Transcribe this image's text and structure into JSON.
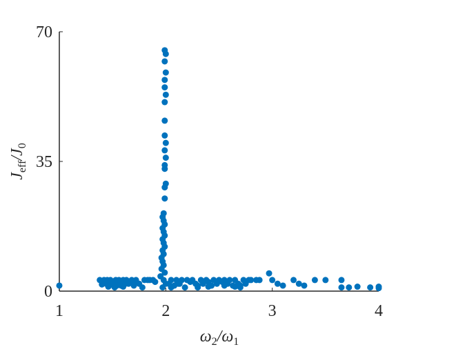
{
  "chart_data": {
    "type": "scatter",
    "xlabel": [
      "ω",
      "2",
      "/ω",
      "1"
    ],
    "ylabel": [
      "J",
      "eff",
      "/J",
      "0"
    ],
    "xlim": [
      1,
      4
    ],
    "xticks": [
      1,
      2,
      3,
      4
    ],
    "ylim": [
      0,
      70
    ],
    "yticks": [
      0,
      35,
      70
    ],
    "color": "#0072bd",
    "x": [
      1.0,
      1.38,
      1.4,
      1.42,
      1.44,
      1.45,
      1.47,
      1.48,
      1.5,
      1.52,
      1.53,
      1.55,
      1.56,
      1.58,
      1.6,
      1.62,
      1.63,
      1.65,
      1.68,
      1.7,
      1.72,
      1.75,
      1.78,
      1.8,
      1.83,
      1.85,
      1.4,
      1.46,
      1.5,
      1.54,
      1.57,
      1.6,
      1.65,
      1.7,
      1.88,
      1.9,
      1.99,
      2.0,
      1.99,
      2.0,
      1.99,
      1.99,
      2.0,
      1.99,
      1.99,
      1.99,
      2.0,
      1.99,
      2.0,
      1.99,
      1.99,
      2.0,
      1.99,
      1.99,
      1.98,
      1.97,
      1.98,
      1.99,
      1.97,
      1.98,
      1.99,
      1.97,
      1.98,
      1.99,
      1.97,
      1.98,
      1.96,
      1.97,
      1.98,
      1.96,
      1.99,
      1.95,
      1.98,
      2.0,
      1.97,
      2.03,
      2.05,
      2.08,
      2.1,
      2.13,
      2.15,
      2.18,
      2.2,
      2.23,
      2.25,
      2.28,
      2.3,
      2.33,
      2.35,
      2.38,
      2.4,
      2.43,
      2.45,
      2.48,
      2.5,
      2.53,
      2.55,
      2.58,
      2.6,
      2.63,
      2.65,
      2.68,
      2.7,
      2.73,
      2.75,
      2.78,
      2.8,
      2.85,
      2.88,
      2.3,
      2.4,
      2.55,
      2.65,
      2.7,
      2.05,
      2.12,
      2.97,
      3.0,
      3.05,
      3.1,
      3.2,
      3.25,
      3.3,
      3.4,
      3.5,
      3.65,
      3.65,
      3.72,
      3.8,
      3.92,
      4.0,
      4.0
    ],
    "y": [
      1.5,
      3,
      2.5,
      3,
      2,
      3,
      1.5,
      3,
      2.5,
      1,
      3,
      2,
      3,
      1.5,
      3,
      2,
      3,
      2.5,
      3,
      1.5,
      3,
      2,
      1,
      3,
      3,
      3,
      1.8,
      1.2,
      2,
      1.5,
      2.8,
      1.2,
      2,
      2.5,
      3,
      2.5,
      65,
      64,
      62,
      59,
      57,
      55,
      53,
      51,
      46,
      42,
      40,
      38,
      36,
      34,
      33,
      29,
      28,
      25,
      21,
      20,
      19,
      18,
      17,
      16,
      15,
      14,
      13,
      12,
      11,
      10,
      9,
      8,
      7,
      6,
      5,
      4,
      3,
      2,
      1,
      2,
      3,
      1.5,
      3,
      2,
      3,
      1,
      3,
      2.5,
      3,
      2,
      1,
      3,
      2,
      3,
      2.5,
      1.5,
      3,
      2,
      3,
      2.5,
      3,
      2,
      3,
      1.5,
      3,
      2,
      1,
      3,
      2,
      3,
      3,
      3,
      3,
      1.5,
      1.2,
      1.5,
      1.2,
      1.5,
      1,
      2,
      4.8,
      3,
      2,
      1.5,
      3,
      2,
      1.5,
      3,
      3,
      3,
      1,
      1,
      1.2,
      1,
      1.2,
      0.8
    ]
  }
}
